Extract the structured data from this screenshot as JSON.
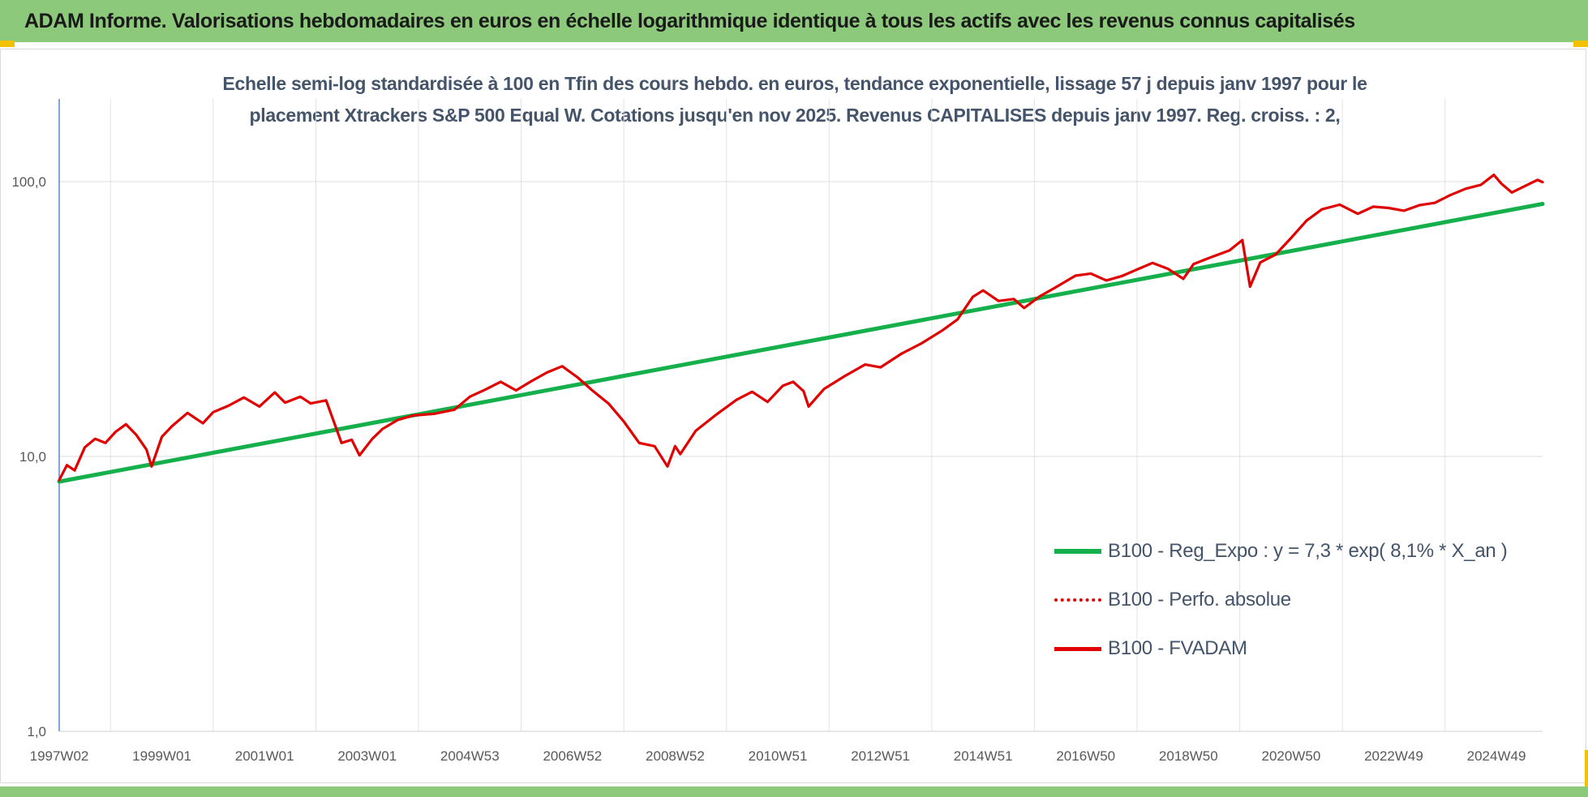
{
  "banner": {
    "title": "ADAM Informe. Valorisations hebdomadaires en euros en échelle logarithmique identique à tous les actifs avec les revenus connus capitalisés"
  },
  "chart_data": {
    "type": "line",
    "title_line1": "Echelle semi-log standardisée à 100 en Tfin des cours hebdo. en euros, tendance exponentielle, lissage 57 j depuis janv 1997 pour le",
    "title_line2": "placement Xtrackers S&P 500 Equal W. Cotations jusqu'en nov 2025. Revenus CAPITALISES depuis janv 1997. Reg. croiss. : 2,",
    "y_scale": "log",
    "ylim": [
      1,
      200
    ],
    "y_ticks": [
      1,
      10,
      100
    ],
    "y_tick_labels": [
      "1,0",
      "10,0",
      "100,0"
    ],
    "xlim": [
      1997.0,
      2025.9
    ],
    "x_tick_labels": [
      "1997W02",
      "1999W01",
      "2001W01",
      "2003W01",
      "2004W53",
      "2006W52",
      "2008W52",
      "2010W51",
      "2012W51",
      "2014W51",
      "2016W50",
      "2018W50",
      "2020W50",
      "2022W49",
      "2024W49"
    ],
    "x_tick_values": [
      1997.0,
      1999.0,
      2001.0,
      2003.0,
      2005.0,
      2007.0,
      2009.0,
      2011.0,
      2013.0,
      2015.0,
      2017.0,
      2019.0,
      2021.0,
      2023.0,
      2025.0
    ],
    "grid": true,
    "legend_position": "bottom-right",
    "series": [
      {
        "name": "B100 - Reg_Expo : y = 7,3 * exp( 8,1% *  X_an )",
        "color": "#15b04b",
        "style": "solid",
        "x": [
          1997.0,
          2025.9
        ],
        "values": [
          8.1,
          83
        ]
      },
      {
        "name": "B100 - Perfo. absolue",
        "color": "#e00000",
        "style": "dotted",
        "x": [],
        "values": []
      },
      {
        "name": "B100 - FVADAM",
        "color": "#e00000",
        "style": "solid",
        "x": [
          1997.0,
          1997.15,
          1997.3,
          1997.5,
          1997.7,
          1997.9,
          1998.1,
          1998.3,
          1998.5,
          1998.7,
          1998.8,
          1999.0,
          1999.2,
          1999.5,
          1999.8,
          2000.0,
          2000.3,
          2000.6,
          2000.9,
          2001.2,
          2001.4,
          2001.7,
          2001.9,
          2002.2,
          2002.5,
          2002.7,
          2002.85,
          2003.1,
          2003.3,
          2003.6,
          2003.9,
          2004.3,
          2004.7,
          2005.0,
          2005.3,
          2005.6,
          2005.9,
          2006.2,
          2006.5,
          2006.8,
          2007.1,
          2007.4,
          2007.7,
          2008.0,
          2008.3,
          2008.6,
          2008.85,
          2009.0,
          2009.1,
          2009.4,
          2009.8,
          2010.2,
          2010.5,
          2010.8,
          2011.1,
          2011.3,
          2011.5,
          2011.6,
          2011.9,
          2012.3,
          2012.7,
          2013.0,
          2013.4,
          2013.8,
          2014.2,
          2014.5,
          2014.8,
          2015.0,
          2015.3,
          2015.6,
          2015.8,
          2016.1,
          2016.4,
          2016.8,
          2017.1,
          2017.4,
          2017.7,
          2018.0,
          2018.3,
          2018.6,
          2018.9,
          2019.1,
          2019.4,
          2019.8,
          2020.05,
          2020.2,
          2020.4,
          2020.7,
          2021.0,
          2021.3,
          2021.6,
          2021.95,
          2022.3,
          2022.6,
          2022.9,
          2023.2,
          2023.5,
          2023.8,
          2024.1,
          2024.4,
          2024.7,
          2024.95,
          2025.1,
          2025.3,
          2025.55,
          2025.8,
          2025.9
        ],
        "values": [
          8.2,
          9.3,
          8.9,
          10.8,
          11.6,
          11.2,
          12.3,
          13.1,
          12.0,
          10.6,
          9.2,
          11.8,
          12.9,
          14.4,
          13.2,
          14.5,
          15.3,
          16.4,
          15.2,
          17.1,
          15.7,
          16.5,
          15.6,
          16.0,
          11.2,
          11.5,
          10.1,
          11.6,
          12.6,
          13.6,
          14.1,
          14.3,
          14.8,
          16.5,
          17.5,
          18.7,
          17.4,
          18.8,
          20.2,
          21.3,
          19.4,
          17.3,
          15.6,
          13.4,
          11.2,
          10.9,
          9.2,
          10.9,
          10.2,
          12.4,
          14.2,
          16.1,
          17.2,
          15.8,
          18.1,
          18.7,
          17.3,
          15.2,
          17.6,
          19.6,
          21.6,
          21.1,
          23.6,
          25.8,
          28.7,
          31.5,
          38.1,
          40.2,
          36.8,
          37.4,
          34.7,
          38.2,
          41.1,
          45.5,
          46.3,
          43.7,
          45.3,
          47.9,
          50.6,
          48.2,
          44.3,
          50.1,
          52.7,
          56.2,
          61.3,
          41.5,
          50.8,
          54.3,
          62.4,
          72.1,
          79.3,
          82.5,
          76.4,
          81.1,
          80.2,
          78.4,
          82.1,
          83.7,
          89.3,
          94.2,
          97.4,
          105.8,
          98.2,
          91.3,
          96.2,
          101.5,
          99.6
        ]
      }
    ]
  }
}
